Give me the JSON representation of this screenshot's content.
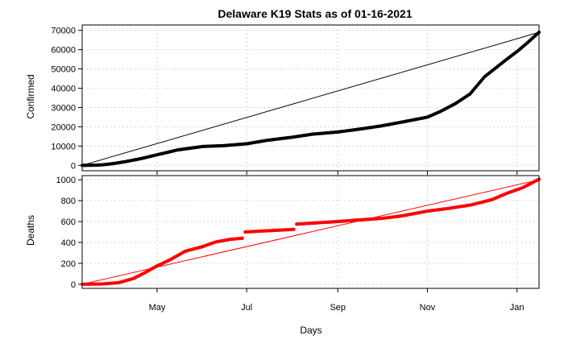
{
  "chart_data": [
    {
      "type": "line",
      "title": "Delaware K19 Stats as of 01-16-2021",
      "ylabel": "Confirmed",
      "xlabel": "Days",
      "ylim": [
        0,
        70000
      ],
      "yticks": [
        0,
        10000,
        20000,
        30000,
        40000,
        50000,
        60000,
        70000
      ],
      "xticks": [
        "May",
        "Jul",
        "Sep",
        "Nov",
        "Jan"
      ],
      "xtick_dates": [
        "2020-05-01",
        "2020-07-01",
        "2020-09-01",
        "2020-11-01",
        "2021-01-01"
      ],
      "x_range": [
        "2020-03-11",
        "2021-01-16"
      ],
      "grid": true,
      "series": [
        {
          "color": "#000000",
          "style": "points",
          "x": [
            "2020-03-11",
            "2020-03-20",
            "2020-03-25",
            "2020-04-01",
            "2020-04-10",
            "2020-04-20",
            "2020-05-01",
            "2020-05-15",
            "2020-06-01",
            "2020-06-15",
            "2020-07-01",
            "2020-07-15",
            "2020-08-01",
            "2020-08-15",
            "2020-09-01",
            "2020-09-15",
            "2020-10-01",
            "2020-10-15",
            "2020-11-01",
            "2020-11-10",
            "2020-11-20",
            "2020-11-30",
            "2020-12-05",
            "2020-12-10",
            "2020-12-15",
            "2020-12-20",
            "2020-12-25",
            "2021-01-01",
            "2021-01-08",
            "2021-01-16"
          ],
          "values": [
            0,
            100,
            300,
            900,
            2000,
            3500,
            5500,
            8000,
            9800,
            10200,
            11200,
            13000,
            14600,
            16200,
            17300,
            18700,
            20500,
            22500,
            25000,
            28000,
            32000,
            37000,
            41500,
            46000,
            49000,
            52000,
            55000,
            59000,
            63500,
            69000
          ]
        },
        {
          "color": "#000000",
          "style": "line",
          "x": [
            "2020-03-11",
            "2021-01-16"
          ],
          "values": [
            0,
            69000
          ]
        }
      ]
    },
    {
      "type": "line",
      "ylabel": "Deaths",
      "xlabel": "Days",
      "ylim": [
        0,
        1000
      ],
      "yticks": [
        0,
        200,
        400,
        600,
        800,
        1000
      ],
      "xticks": [
        "May",
        "Jul",
        "Sep",
        "Nov",
        "Jan"
      ],
      "xtick_dates": [
        "2020-05-01",
        "2020-07-01",
        "2020-09-01",
        "2020-11-01",
        "2021-01-01"
      ],
      "x_range": [
        "2020-03-11",
        "2021-01-16"
      ],
      "grid": true,
      "series": [
        {
          "color": "#ff0000",
          "style": "points",
          "segments": [
            {
              "x": [
                "2020-03-11",
                "2020-03-25",
                "2020-04-05",
                "2020-04-15",
                "2020-04-22",
                "2020-05-01",
                "2020-05-10",
                "2020-05-20",
                "2020-06-01",
                "2020-06-10",
                "2020-06-20",
                "2020-06-28"
              ],
              "values": [
                0,
                2,
                15,
                55,
                105,
                175,
                235,
                315,
                360,
                405,
                430,
                440
              ]
            },
            {
              "x": [
                "2020-06-30",
                "2020-07-10",
                "2020-07-20",
                "2020-08-02"
              ],
              "values": [
                500,
                508,
                515,
                525
              ]
            },
            {
              "x": [
                "2020-08-04",
                "2020-08-15",
                "2020-09-01",
                "2020-09-15",
                "2020-10-01",
                "2020-10-15",
                "2020-11-01",
                "2020-11-15",
                "2020-12-01",
                "2020-12-15",
                "2020-12-25",
                "2021-01-05",
                "2021-01-16"
              ],
              "values": [
                575,
                585,
                600,
                615,
                630,
                655,
                700,
                725,
                760,
                810,
                870,
                925,
                1005
              ]
            }
          ]
        },
        {
          "color": "#ff0000",
          "style": "line",
          "x": [
            "2020-03-11",
            "2021-01-16"
          ],
          "values": [
            0,
            1000
          ]
        }
      ]
    }
  ]
}
